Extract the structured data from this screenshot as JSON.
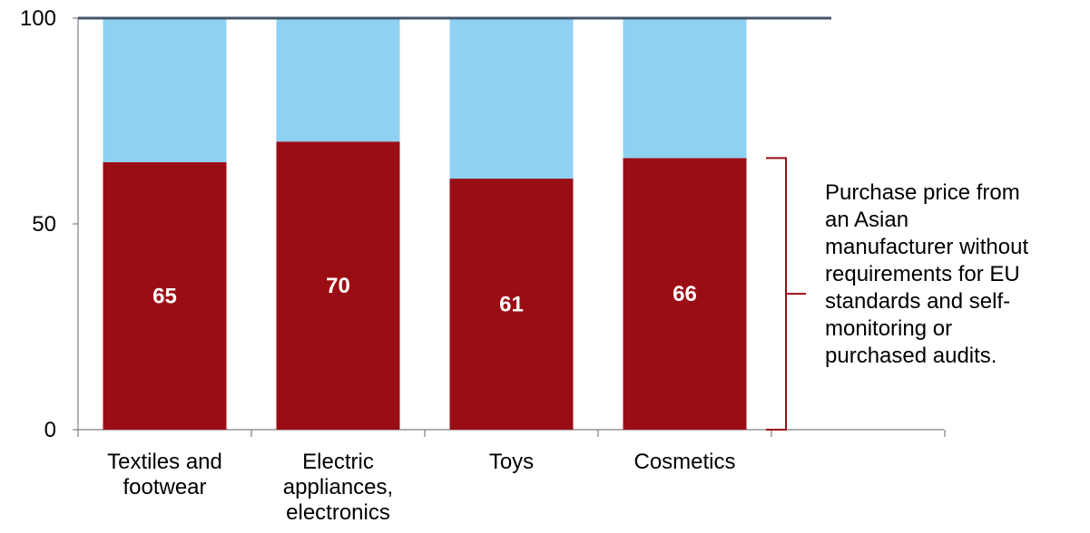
{
  "chart_data": {
    "type": "bar",
    "stacked": true,
    "categories": [
      [
        "Textiles and",
        "footwear"
      ],
      [
        "Electric",
        "appliances,",
        "electronics"
      ],
      [
        "Toys"
      ],
      [
        "Cosmetics"
      ]
    ],
    "series": [
      {
        "values": [
          65,
          70,
          61,
          66
        ],
        "color": "#9b0d14",
        "data_labels": [
          "65",
          "70",
          "61",
          "66"
        ]
      },
      {
        "values": [
          35,
          30,
          39,
          34
        ],
        "color": "#8ed1f3"
      }
    ],
    "ylim": [
      0,
      100
    ],
    "yticks": [
      "0",
      "50",
      "100"
    ],
    "top_line": {
      "value": 100,
      "color": "#44546a"
    },
    "annotation": {
      "lines": [
        "Purchase price from",
        "an Asian",
        "manufacturer without",
        "requirements for EU",
        "standards and self-",
        "monitoring or",
        "purchased audits."
      ],
      "bracket_color": "#9b0d14",
      "bracket_range": [
        0,
        66
      ]
    }
  }
}
